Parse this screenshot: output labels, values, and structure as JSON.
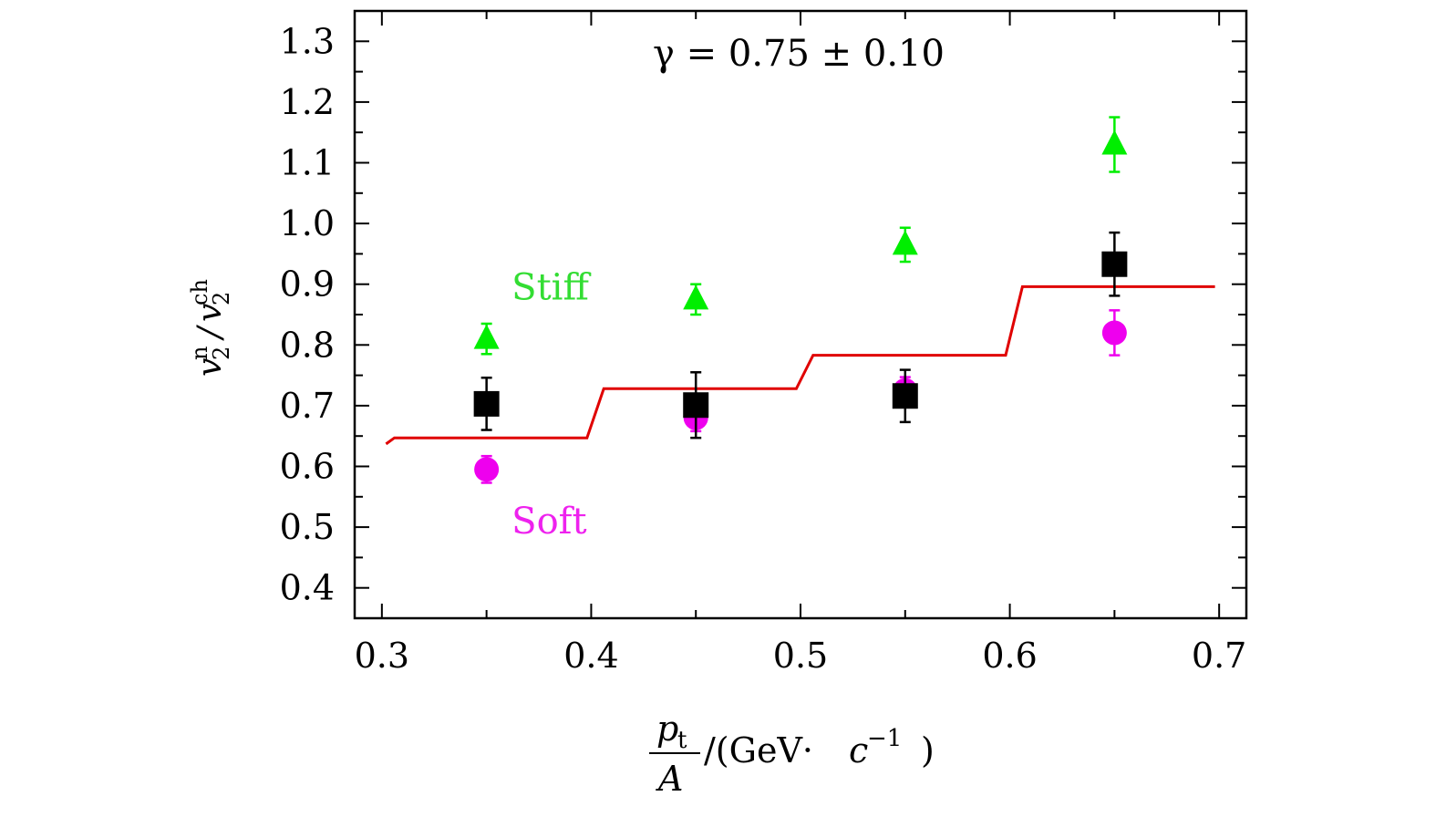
{
  "chart_data": {
    "type": "scatter",
    "title": "",
    "xlabel": {
      "numerator": "p",
      "numerator_sub": "t",
      "denominator": "A",
      "unit_prefix": "/(GeV·",
      "unit_var": "c",
      "unit_exp": "−1",
      "unit_suffix": ")"
    },
    "ylabel": {
      "num": "v",
      "num_sub": "2",
      "num_sup": "n",
      "den": "v",
      "den_sub": "2",
      "den_sup": "ch"
    },
    "xlim": [
      0.3,
      0.7
    ],
    "ylim": [
      0.4,
      1.3
    ],
    "yrange_drawn": [
      0.35,
      1.35
    ],
    "xrange_drawn": [
      0.287,
      0.713
    ],
    "xticks": [
      "0.3",
      "0.4",
      "0.5",
      "0.6",
      "0.7"
    ],
    "yticks": [
      "0.4",
      "0.5",
      "0.6",
      "0.7",
      "0.8",
      "0.9",
      "1.0",
      "1.1",
      "1.2",
      "1.3"
    ],
    "annotation": "γ = 0.75 ± 0.10",
    "labels": [
      {
        "text": "Stiff",
        "x": 0.362,
        "y": 0.875,
        "color": "#33dd33"
      },
      {
        "text": "Soft",
        "x": 0.362,
        "y": 0.49,
        "color": "#ee22ee"
      }
    ],
    "series": [
      {
        "marker": "triangle",
        "color": "#00ee00",
        "points": [
          [
            0.35,
            0.81,
            0.025
          ],
          [
            0.45,
            0.875,
            0.025
          ],
          [
            0.55,
            0.965,
            0.028
          ],
          [
            0.65,
            1.13,
            0.045
          ]
        ]
      },
      {
        "marker": "square",
        "color": "#000000",
        "points": [
          [
            0.35,
            0.703,
            0.043
          ],
          [
            0.45,
            0.701,
            0.054
          ],
          [
            0.55,
            0.716,
            0.043
          ],
          [
            0.65,
            0.933,
            0.052
          ]
        ]
      },
      {
        "marker": "circle",
        "color": "#ee00ee",
        "points": [
          [
            0.35,
            0.595,
            0.022
          ],
          [
            0.45,
            0.68,
            0.022
          ],
          [
            0.55,
            0.725,
            0.022
          ],
          [
            0.65,
            0.82,
            0.037
          ]
        ]
      }
    ],
    "model_line": {
      "color": "#e00000",
      "points": [
        [
          0.302,
          0.637
        ],
        [
          0.306,
          0.647
        ],
        [
          0.398,
          0.647
        ],
        [
          0.406,
          0.728
        ],
        [
          0.498,
          0.728
        ],
        [
          0.506,
          0.783
        ],
        [
          0.598,
          0.783
        ],
        [
          0.606,
          0.896
        ],
        [
          0.698,
          0.896
        ]
      ]
    },
    "grid": false,
    "legend": "none"
  }
}
